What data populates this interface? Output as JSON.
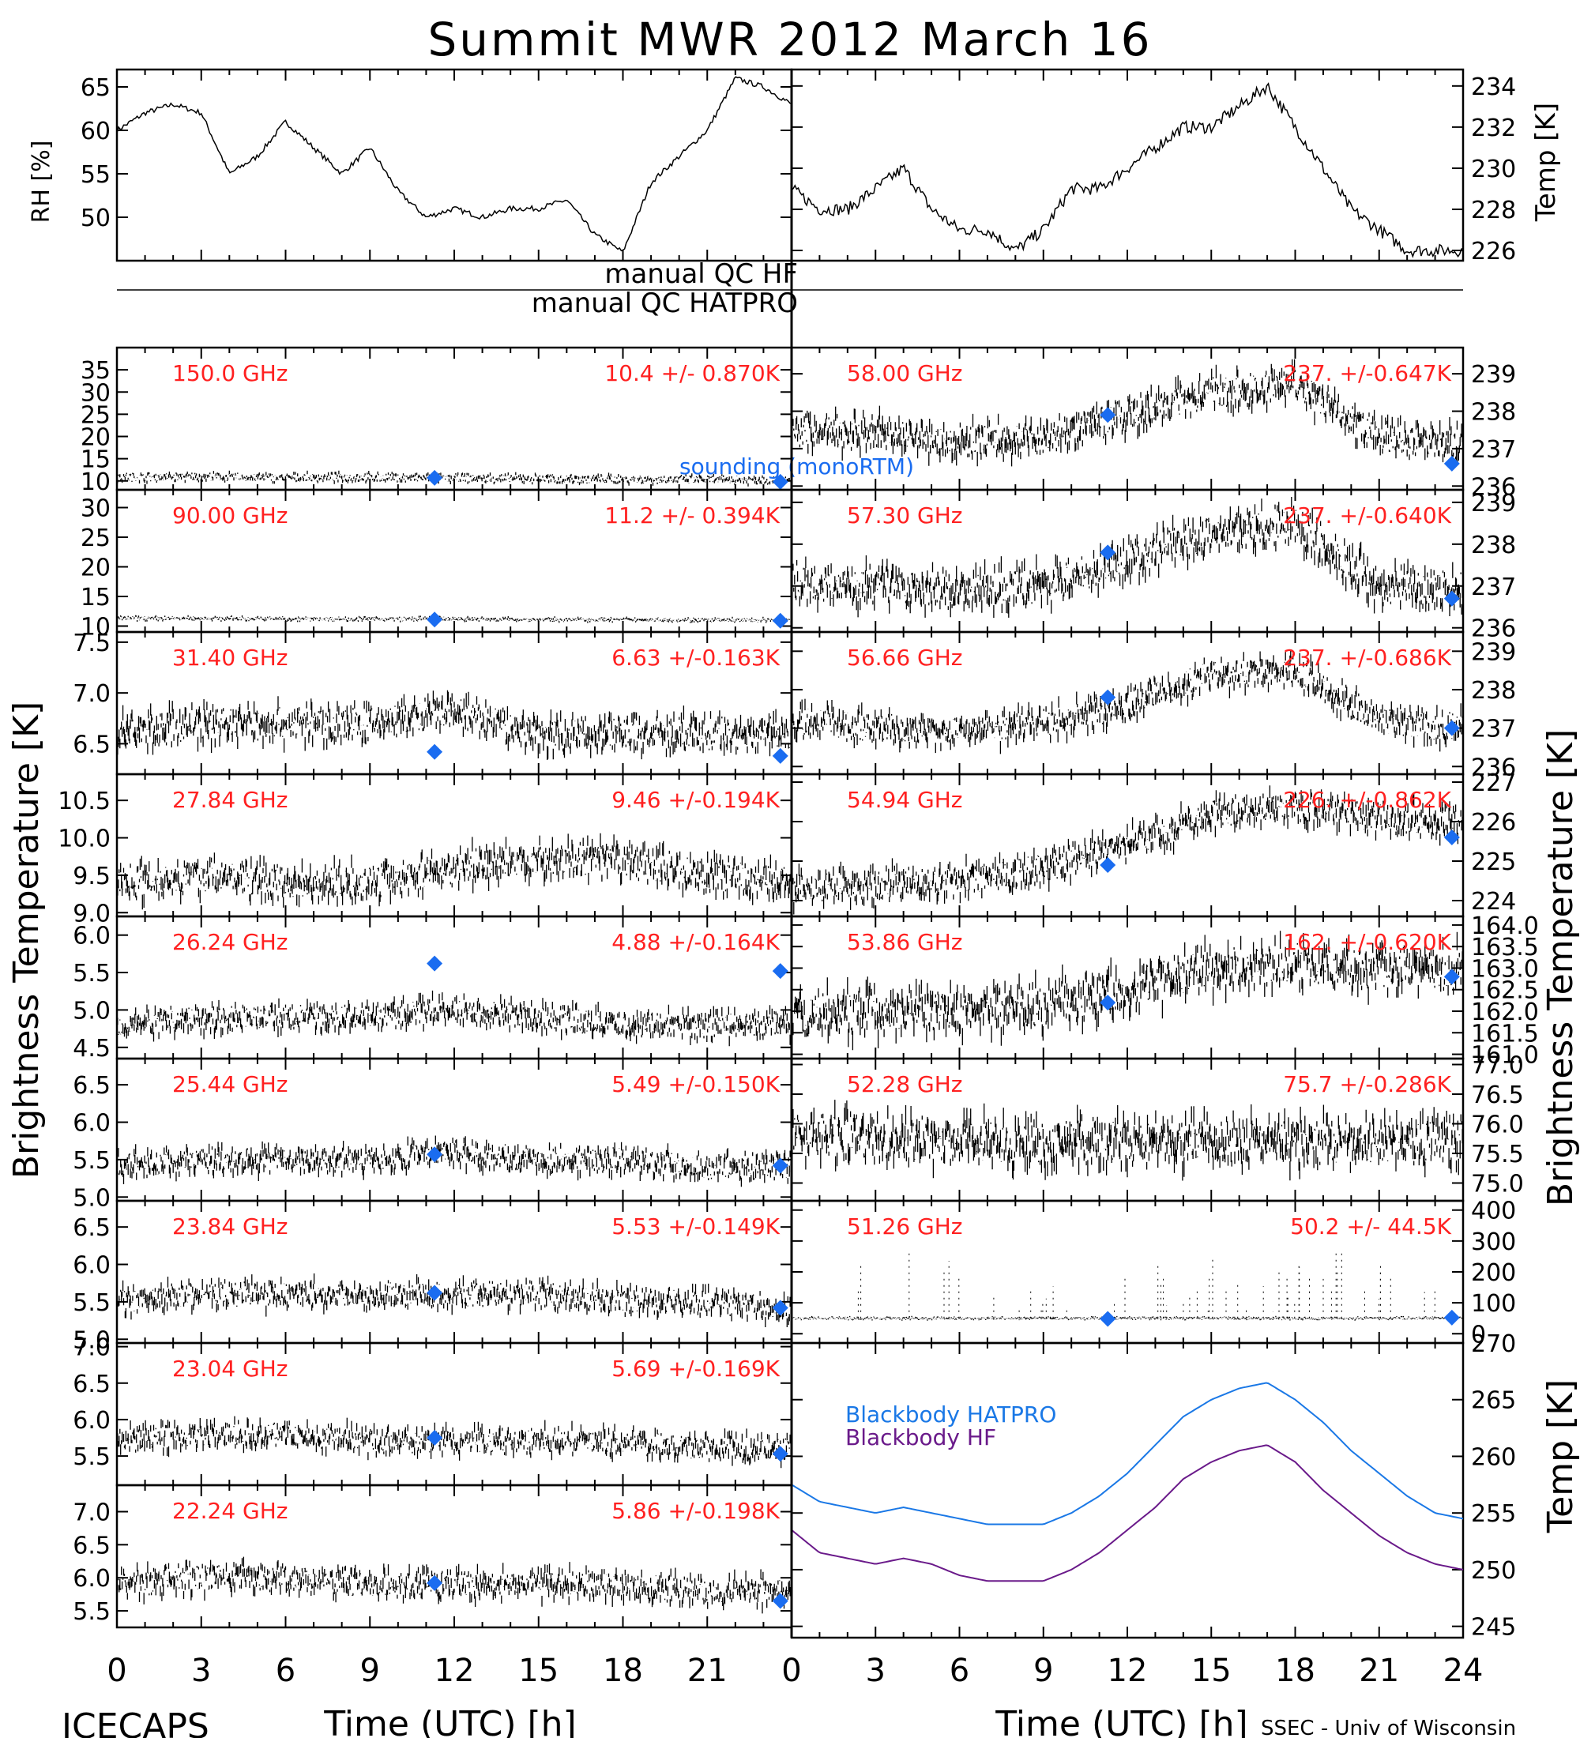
{
  "title": "Summit MWR 2012 March 16",
  "footer": {
    "left": "ICECAPS",
    "right": "SSEC - Univ of Wisconsin"
  },
  "qc": {
    "hf": "manual  QC HF",
    "hatpro": "manual  QC HATPRO"
  },
  "axes_labels": {
    "rh": "RH [%]",
    "temp": "Temp [K]",
    "bt_left": "Brightness Temperature [K]",
    "bt_right": "Brightness Temperature [K]",
    "bb_temp": "Temp [K]",
    "x_left": "Time (UTC) [h]",
    "x_right": "Time (UTC) [h]"
  },
  "sounding_label": "sounding (monoRTM)",
  "colors": {
    "data": "#000000",
    "label": "#ff2020",
    "sounding": "#1a6cf0",
    "bb_hatpro": "#1a78e6",
    "bb_hf": "#6a1a8a"
  },
  "chart_data": [
    {
      "type": "line",
      "id": "rh",
      "ylabel": "RH [%]",
      "x": [
        0,
        1,
        2,
        3,
        4,
        5,
        6,
        7,
        8,
        9,
        10,
        11,
        12,
        13,
        14,
        15,
        16,
        17,
        18,
        19,
        20,
        21,
        22,
        23,
        24
      ],
      "values": [
        60,
        62,
        63,
        62,
        55,
        57,
        61,
        58,
        55,
        58,
        53,
        50,
        51,
        50,
        51,
        51,
        52,
        48,
        46,
        54,
        57,
        60,
        66,
        65,
        63
      ],
      "ylim": [
        45,
        67
      ],
      "yticks": [
        50,
        55,
        60,
        65
      ]
    },
    {
      "type": "line",
      "id": "temp",
      "ylabel": "Temp [K]",
      "x": [
        0,
        1,
        2,
        3,
        4,
        5,
        6,
        7,
        8,
        9,
        10,
        11,
        12,
        13,
        14,
        15,
        16,
        17,
        18,
        19,
        20,
        21,
        22,
        23,
        24
      ],
      "values": [
        229,
        228,
        228,
        229,
        230,
        228,
        227,
        227,
        226,
        227,
        229,
        229,
        230,
        231,
        232,
        232,
        233,
        234,
        232,
        230,
        228,
        227,
        226,
        226,
        226
      ],
      "ylim": [
        225.5,
        234.8
      ],
      "yticks": [
        226,
        228,
        230,
        232,
        234
      ]
    },
    {
      "type": "scatter",
      "side": "left",
      "freq": "150.0 GHz",
      "stat": "10.4 +/- 0.870K",
      "ylim": [
        8,
        40
      ],
      "yticks": [
        10,
        15,
        20,
        25,
        30,
        35
      ],
      "x": [
        0,
        3,
        6,
        9,
        12,
        15,
        18,
        21,
        24
      ],
      "values": [
        10.8,
        10.9,
        10.7,
        10.8,
        10.6,
        10.5,
        10.4,
        10.3,
        10.2
      ],
      "noise": 0.8,
      "sounding": [
        [
          11.3,
          10.7
        ],
        [
          23.6,
          9.8
        ]
      ]
    },
    {
      "type": "scatter",
      "side": "left",
      "freq": "90.00 GHz",
      "stat": "11.2 +/- 0.394K",
      "ylim": [
        9,
        33
      ],
      "yticks": [
        10,
        15,
        20,
        25,
        30
      ],
      "x": [
        0,
        3,
        6,
        9,
        12,
        15,
        18,
        21,
        24
      ],
      "values": [
        11.3,
        11.3,
        11.2,
        11.2,
        11.2,
        11.1,
        11.1,
        11.0,
        11.0
      ],
      "noise": 0.3,
      "sounding": [
        [
          11.3,
          11.1
        ],
        [
          23.6,
          10.9
        ]
      ]
    },
    {
      "type": "scatter",
      "side": "left",
      "freq": "31.40 GHz",
      "stat": "6.63 +/-0.163K",
      "ylim": [
        6.2,
        7.6
      ],
      "yticks": [
        6.5,
        7.0,
        7.5
      ],
      "x": [
        0,
        3,
        6,
        9,
        12,
        15,
        18,
        21,
        24
      ],
      "values": [
        6.6,
        6.7,
        6.7,
        6.7,
        6.8,
        6.6,
        6.6,
        6.6,
        6.6
      ],
      "noise": 0.15,
      "sounding": [
        [
          11.3,
          6.42
        ],
        [
          23.6,
          6.38
        ]
      ]
    },
    {
      "type": "scatter",
      "side": "left",
      "freq": "27.84 GHz",
      "stat": "9.46 +/-0.194K",
      "ylim": [
        8.95,
        10.85
      ],
      "yticks": [
        9.0,
        9.5,
        10.0,
        10.5
      ],
      "x": [
        0,
        3,
        6,
        9,
        12,
        15,
        18,
        21,
        24
      ],
      "values": [
        9.4,
        9.5,
        9.4,
        9.4,
        9.6,
        9.7,
        9.7,
        9.5,
        9.4
      ],
      "noise": 0.2,
      "sounding": []
    },
    {
      "type": "scatter",
      "side": "left",
      "freq": "26.24 GHz",
      "stat": "4.88 +/-0.164K",
      "ylim": [
        4.35,
        6.25
      ],
      "yticks": [
        4.5,
        5.0,
        5.5,
        6.0
      ],
      "x": [
        0,
        3,
        6,
        9,
        12,
        15,
        18,
        21,
        24
      ],
      "values": [
        4.8,
        4.9,
        4.9,
        4.9,
        5.0,
        4.9,
        4.8,
        4.8,
        4.8
      ],
      "noise": 0.15,
      "sounding": [
        [
          11.3,
          5.62
        ],
        [
          23.6,
          5.52
        ]
      ]
    },
    {
      "type": "scatter",
      "side": "left",
      "freq": "25.44 GHz",
      "stat": "5.49 +/-0.150K",
      "ylim": [
        4.95,
        6.85
      ],
      "yticks": [
        5.0,
        5.5,
        6.0,
        6.5
      ],
      "x": [
        0,
        3,
        6,
        9,
        12,
        15,
        18,
        21,
        24
      ],
      "values": [
        5.4,
        5.5,
        5.5,
        5.5,
        5.6,
        5.5,
        5.5,
        5.4,
        5.4
      ],
      "noise": 0.15,
      "sounding": [
        [
          11.3,
          5.57
        ],
        [
          23.6,
          5.42
        ]
      ]
    },
    {
      "type": "scatter",
      "side": "left",
      "freq": "23.84 GHz",
      "stat": "5.53 +/-0.149K",
      "ylim": [
        4.95,
        6.85
      ],
      "yticks": [
        5.0,
        5.5,
        6.0,
        6.5
      ],
      "x": [
        0,
        3,
        6,
        9,
        12,
        15,
        18,
        21,
        24
      ],
      "values": [
        5.5,
        5.6,
        5.6,
        5.6,
        5.6,
        5.6,
        5.5,
        5.5,
        5.4
      ],
      "noise": 0.15,
      "sounding": [
        [
          11.3,
          5.62
        ],
        [
          23.6,
          5.42
        ]
      ]
    },
    {
      "type": "scatter",
      "side": "left",
      "freq": "23.04 GHz",
      "stat": "5.69 +/-0.169K",
      "ylim": [
        5.1,
        7.05
      ],
      "yticks": [
        5.5,
        6.0,
        6.5,
        7.0
      ],
      "x": [
        0,
        3,
        6,
        9,
        12,
        15,
        18,
        21,
        24
      ],
      "values": [
        5.7,
        5.8,
        5.8,
        5.7,
        5.7,
        5.7,
        5.7,
        5.6,
        5.6
      ],
      "noise": 0.15,
      "sounding": [
        [
          11.3,
          5.75
        ],
        [
          23.6,
          5.53
        ]
      ]
    },
    {
      "type": "scatter",
      "side": "left",
      "freq": "22.24 GHz",
      "stat": "5.86 +/-0.198K",
      "ylim": [
        5.25,
        7.4
      ],
      "yticks": [
        5.5,
        6.0,
        6.5,
        7.0
      ],
      "x": [
        0,
        3,
        6,
        9,
        12,
        15,
        18,
        21,
        24
      ],
      "values": [
        5.9,
        6.0,
        6.0,
        5.9,
        5.9,
        5.9,
        5.9,
        5.8,
        5.8
      ],
      "noise": 0.18,
      "sounding": [
        [
          11.3,
          5.92
        ],
        [
          23.6,
          5.65
        ]
      ]
    },
    {
      "type": "scatter",
      "side": "right",
      "freq": "58.00 GHz",
      "stat": "237. +/-0.647K",
      "ylim": [
        235.9,
        239.7
      ],
      "yticks": [
        236,
        237,
        238,
        239
      ],
      "x": [
        0,
        3,
        6,
        9,
        12,
        15,
        18,
        21,
        24
      ],
      "values": [
        237.5,
        237.4,
        237.2,
        237.3,
        237.9,
        238.5,
        238.7,
        237.3,
        237.1
      ],
      "noise": 0.4,
      "sounding": [
        [
          11.3,
          237.9
        ],
        [
          23.6,
          236.6
        ]
      ]
    },
    {
      "type": "scatter",
      "side": "right",
      "freq": "57.30 GHz",
      "stat": "237. +/-0.640K",
      "ylim": [
        235.9,
        239.3
      ],
      "yticks": [
        236,
        237,
        238,
        239
      ],
      "x": [
        0,
        3,
        6,
        9,
        12,
        15,
        18,
        21,
        24
      ],
      "values": [
        237.1,
        237.0,
        236.9,
        237.0,
        237.6,
        238.3,
        238.5,
        237.0,
        236.9
      ],
      "noise": 0.4,
      "sounding": [
        [
          11.3,
          237.8
        ],
        [
          23.6,
          236.7
        ]
      ]
    },
    {
      "type": "scatter",
      "side": "right",
      "freq": "56.66 GHz",
      "stat": "237. +/-0.686K",
      "ylim": [
        235.8,
        239.5
      ],
      "yticks": [
        236,
        237,
        238,
        239
      ],
      "x": [
        0,
        3,
        6,
        9,
        12,
        15,
        18,
        21,
        24
      ],
      "values": [
        237.2,
        237.0,
        236.9,
        237.1,
        237.6,
        238.4,
        238.5,
        237.2,
        237.0
      ],
      "noise": 0.35,
      "sounding": [
        [
          11.3,
          237.8
        ],
        [
          23.6,
          237.0
        ]
      ]
    },
    {
      "type": "scatter",
      "side": "right",
      "freq": "54.94 GHz",
      "stat": "226. +/-0.862K",
      "ylim": [
        223.6,
        227.2
      ],
      "yticks": [
        224,
        225,
        226,
        227
      ],
      "x": [
        0,
        3,
        6,
        9,
        12,
        15,
        18,
        21,
        24
      ],
      "values": [
        224.3,
        224.4,
        224.5,
        224.8,
        225.4,
        226.2,
        226.4,
        226.1,
        226.0
      ],
      "noise": 0.35,
      "sounding": [
        [
          11.3,
          224.9
        ],
        [
          23.6,
          225.6
        ]
      ]
    },
    {
      "type": "scatter",
      "side": "right",
      "freq": "53.86 GHz",
      "stat": "162. +/-0.620K",
      "ylim": [
        160.9,
        164.2
      ],
      "yticks": [
        161.0,
        161.5,
        162.0,
        162.5,
        163.0,
        163.5,
        164.0
      ],
      "x": [
        0,
        3,
        6,
        9,
        12,
        15,
        18,
        21,
        24
      ],
      "values": [
        161.9,
        162.0,
        162.0,
        162.1,
        162.5,
        163.0,
        163.1,
        163.0,
        163.0
      ],
      "noise": 0.45,
      "sounding": [
        [
          11.3,
          162.2
        ],
        [
          23.6,
          162.8
        ]
      ]
    },
    {
      "type": "scatter",
      "side": "right",
      "freq": "52.28 GHz",
      "stat": "75.7 +/-0.286K",
      "ylim": [
        74.7,
        77.1
      ],
      "yticks": [
        75.0,
        75.5,
        76.0,
        76.5,
        77.0
      ],
      "x": [
        0,
        3,
        6,
        9,
        12,
        15,
        18,
        21,
        24
      ],
      "values": [
        75.8,
        75.8,
        75.7,
        75.7,
        75.7,
        75.7,
        75.7,
        75.7,
        75.7
      ],
      "noise": 0.35,
      "sounding": []
    },
    {
      "type": "scatter",
      "side": "right",
      "freq": "51.26 GHz",
      "stat": "50.2 +/- 44.5K",
      "ylim": [
        -30,
        430
      ],
      "yticks": [
        0,
        100,
        200,
        300,
        400
      ],
      "x": [
        0,
        3,
        6,
        9,
        12,
        15,
        18,
        21,
        24
      ],
      "values": [
        50,
        50,
        50,
        50,
        50,
        50,
        50,
        50,
        50
      ],
      "noise": 4,
      "spikes": true,
      "sounding": [
        [
          11.3,
          48
        ],
        [
          23.6,
          52
        ]
      ]
    },
    {
      "type": "line",
      "side": "right",
      "id": "blackbody",
      "ylim": [
        244,
        270
      ],
      "yticks": [
        245,
        250,
        255,
        260,
        265,
        270
      ],
      "x": [
        0,
        1,
        2,
        3,
        4,
        5,
        6,
        7,
        8,
        9,
        10,
        11,
        12,
        13,
        14,
        15,
        16,
        17,
        18,
        19,
        20,
        21,
        22,
        23,
        24
      ],
      "series": [
        {
          "name": "Blackbody HATPRO",
          "values": [
            257.5,
            256,
            255.5,
            255,
            255.5,
            255,
            254.5,
            254,
            254,
            254,
            255,
            256.5,
            258.5,
            261,
            263.5,
            265,
            266,
            266.5,
            265,
            263,
            260.5,
            258.5,
            256.5,
            255,
            254.5
          ]
        },
        {
          "name": "Blackbody HF",
          "values": [
            253.5,
            251.5,
            251,
            250.5,
            251,
            250.5,
            249.5,
            249,
            249,
            249,
            250,
            251.5,
            253.5,
            255.5,
            258,
            259.5,
            260.5,
            261,
            259.5,
            257,
            255,
            253,
            251.5,
            250.5,
            250
          ]
        }
      ]
    }
  ],
  "xaxis": {
    "ticks_left": [
      0,
      3,
      6,
      9,
      12,
      15,
      18,
      21
    ],
    "ticks_right": [
      0,
      3,
      6,
      9,
      12,
      15,
      18,
      21,
      24
    ]
  }
}
